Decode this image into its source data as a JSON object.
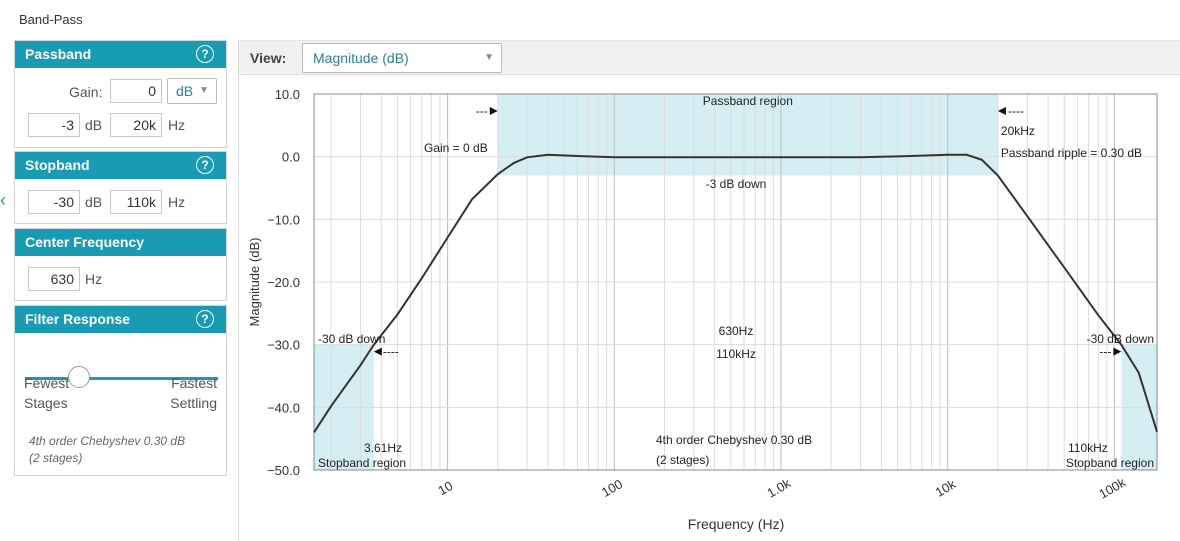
{
  "page_title": "Band-Pass",
  "side_caret": "‹",
  "passband": {
    "title": "Passband",
    "help": "?",
    "gain_label": "Gain:",
    "gain_value": "0",
    "gain_unit_selected": "dB",
    "atten_value": "-3",
    "atten_unit": "dB",
    "freq_value": "20k",
    "freq_unit": "Hz"
  },
  "stopband": {
    "title": "Stopband",
    "help": "?",
    "atten_value": "-30",
    "atten_unit": "dB",
    "freq_value": "110k",
    "freq_unit": "Hz"
  },
  "center_frequency": {
    "title": "Center Frequency",
    "value": "630",
    "unit": "Hz"
  },
  "filter_response": {
    "title": "Filter Response",
    "help": "?",
    "left_label_1": "Fewest",
    "left_label_2": "Stages",
    "right_label_1": "Fastest",
    "right_label_2": "Settling",
    "slider_fraction": 0.28,
    "summary_1": "4th order Chebyshev 0.30 dB",
    "summary_2": "(2 stages)"
  },
  "view": {
    "label": "View:",
    "selected": "Magnitude (dB)"
  },
  "colors": {
    "accent": "#1a9bb4",
    "region_fill": "#d4eef3",
    "curve": "#333333"
  },
  "chart_data": {
    "type": "line",
    "xlabel": "Frequency (Hz)",
    "ylabel": "Magnitude (dB)",
    "x_scale": "log",
    "xlim": [
      1.58,
      180000
    ],
    "ylim": [
      -50,
      10
    ],
    "grid": true,
    "y_ticks": [
      "10.0",
      "0.0",
      "−10.0",
      "−20.0",
      "−30.0",
      "−40.0",
      "−50.0"
    ],
    "y_tick_values": [
      10,
      0,
      -10,
      -20,
      -30,
      -40,
      -50
    ],
    "x_ticks": [
      "10",
      "100",
      "1.0k",
      "10k",
      "100k"
    ],
    "x_tick_values": [
      10,
      100,
      1000,
      10000,
      100000
    ],
    "series": [
      {
        "x": [
          1.58,
          2.0,
          3.0,
          3.61,
          5.0,
          7.0,
          10.0,
          14.0,
          20.0,
          25.0,
          30.0,
          40.0,
          60.0,
          100.0,
          300.0,
          630.0,
          1000.0,
          3000.0,
          6000.0,
          10000.0,
          13000.0,
          16000.0,
          20000.0,
          30000.0,
          50000.0,
          80000.0,
          110000.0,
          140000.0,
          180000.0
        ],
        "y": [
          -44.0,
          -39.8,
          -33.3,
          -30.0,
          -25.2,
          -19.4,
          -12.9,
          -6.8,
          -2.8,
          -1.0,
          -0.1,
          0.3,
          0.1,
          -0.1,
          -0.1,
          -0.1,
          -0.1,
          -0.1,
          0.1,
          0.3,
          0.3,
          -0.5,
          -3.0,
          -9.5,
          -17.7,
          -25.3,
          -30.0,
          -34.5,
          -43.9
        ]
      }
    ],
    "regions": [
      {
        "name": "Passband region",
        "x": [
          20,
          20000
        ],
        "y": [
          -3,
          10
        ]
      },
      {
        "name": "Stopband region",
        "x": [
          1.58,
          3.61
        ],
        "y": [
          -50,
          -30
        ]
      },
      {
        "name": "Stopband region",
        "x": [
          110000,
          180000
        ],
        "y": [
          -50,
          -30
        ]
      }
    ],
    "annotations": {
      "passband_region": "Passband region",
      "gain": "Gain = 0 dB",
      "passband_edge": "20kHz",
      "ripple": "Passband ripple = 0.30 dB",
      "down3": "-3 dB down",
      "left_down30": "-30 dB down",
      "right_down30": "-30 dB down",
      "center": "630Hz",
      "center_stop": "110kHz",
      "left_stop_freq": "3.61Hz",
      "left_stop_region": "Stopband region",
      "right_stop_freq": "110kHz",
      "right_stop_region": "Stopband region",
      "order": "4th order Chebyshev 0.30 dB",
      "stages": "(2 stages)",
      "arrow_left": "---",
      "arrow_right": "----"
    }
  }
}
